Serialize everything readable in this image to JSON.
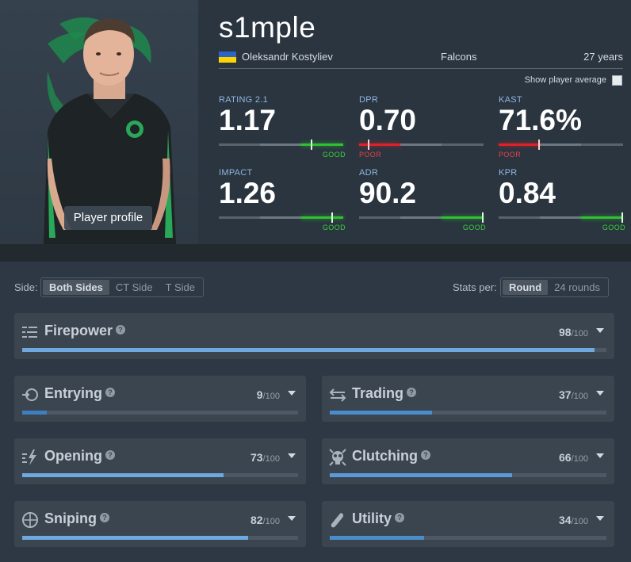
{
  "player": {
    "nickname": "s1mple",
    "real_name": "Oleksandr Kostyliev",
    "team": "Falcons",
    "age": "27 years",
    "country_flag": "ukraine-flag",
    "profile_button": "Player profile",
    "show_average_label": "Show player average",
    "show_average_checked": false
  },
  "stats": {
    "rating": {
      "label": "RATING 2.1",
      "value": "1.17",
      "verdict": "GOOD"
    },
    "dpr": {
      "label": "DPR",
      "value": "0.70",
      "verdict": "POOR"
    },
    "kast": {
      "label": "KAST",
      "value": "71.6%",
      "verdict": "POOR"
    },
    "impact": {
      "label": "IMPACT",
      "value": "1.26",
      "verdict": "GOOD"
    },
    "adr": {
      "label": "ADR",
      "value": "90.2",
      "verdict": "GOOD"
    },
    "kpr": {
      "label": "KPR",
      "value": "0.84",
      "verdict": "GOOD"
    }
  },
  "filters": {
    "side_label": "Side:",
    "side_options": [
      "Both Sides",
      "CT Side",
      "T Side"
    ],
    "side_selected": "Both Sides",
    "per_label": "Stats per:",
    "per_options": [
      "Round",
      "24 rounds"
    ],
    "per_selected": "Round"
  },
  "categories": {
    "firepower": {
      "title": "Firepower",
      "score": "98",
      "max": "/100",
      "fraction": 0.98,
      "color": "#6ea8de",
      "icon": "firepower-icon"
    },
    "entrying": {
      "title": "Entrying",
      "score": "9",
      "max": "/100",
      "fraction": 0.09,
      "color": "#3f7fc0",
      "icon": "entry-icon"
    },
    "trading": {
      "title": "Trading",
      "score": "37",
      "max": "/100",
      "fraction": 0.37,
      "color": "#4a8ccc",
      "icon": "trading-icon"
    },
    "opening": {
      "title": "Opening",
      "score": "73",
      "max": "/100",
      "fraction": 0.73,
      "color": "#6ea8de",
      "icon": "opening-icon"
    },
    "clutching": {
      "title": "Clutching",
      "score": "66",
      "max": "/100",
      "fraction": 0.66,
      "color": "#5a9ad6",
      "icon": "clutch-icon"
    },
    "sniping": {
      "title": "Sniping",
      "score": "82",
      "max": "/100",
      "fraction": 0.82,
      "color": "#6ea8de",
      "icon": "crosshair-icon"
    },
    "utility": {
      "title": "Utility",
      "score": "34",
      "max": "/100",
      "fraction": 0.34,
      "color": "#4a8ccc",
      "icon": "grenade-icon"
    }
  },
  "colors": {
    "good": "#2fc12f",
    "poor": "#e0202a",
    "accent_label": "#8fb6df"
  }
}
